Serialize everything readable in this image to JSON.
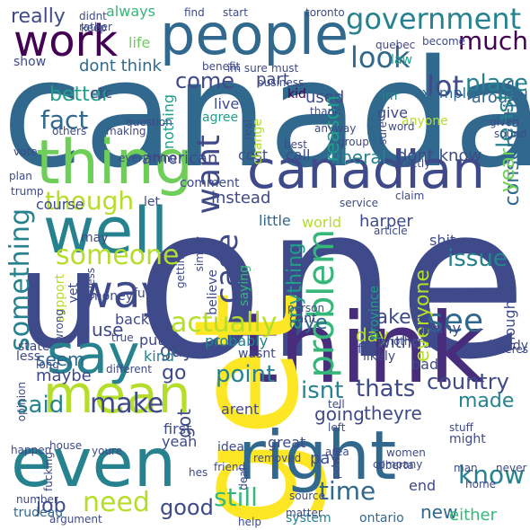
{
  "image_type": "word cloud",
  "background": "#ffffff",
  "palette": [
    "#3e4a89",
    "#31688e",
    "#26828e",
    "#1f9e89",
    "#35b779",
    "#6ece58",
    "#b5de2b",
    "#fde725",
    "#440154"
  ],
  "words": [
    {
      "t": "canada",
      "c": "#31688e"
    },
    {
      "t": "one",
      "c": "#3e4a89"
    },
    {
      "t": "think",
      "c": "#472d7b"
    },
    {
      "t": "get",
      "c": "#fde725"
    },
    {
      "t": "u",
      "c": "#3e4a89"
    },
    {
      "t": "people",
      "c": "#31688e"
    },
    {
      "t": "work",
      "c": "#440154"
    },
    {
      "t": "thing",
      "c": "#6ece58"
    },
    {
      "t": "canadian",
      "c": "#3e4a89"
    },
    {
      "t": "well",
      "c": "#26828e"
    },
    {
      "t": "say",
      "c": "#26828e"
    },
    {
      "t": "even",
      "c": "#26828e"
    },
    {
      "t": "right",
      "c": "#31688e"
    },
    {
      "t": "mean",
      "c": "#b5de2b"
    },
    {
      "t": "way",
      "c": "#3e4a89"
    },
    {
      "t": "government",
      "c": "#26828e"
    },
    {
      "t": "much",
      "c": "#440154"
    },
    {
      "t": "look",
      "c": "#31688e"
    },
    {
      "t": "lot",
      "c": "#3e4a89"
    },
    {
      "t": "place",
      "c": "#26828e"
    },
    {
      "t": "around",
      "c": "#31688e"
    },
    {
      "t": "law",
      "c": "#1f9e89"
    },
    {
      "t": "really",
      "c": "#3e4a89"
    },
    {
      "t": "always",
      "c": "#35b779"
    },
    {
      "t": "come",
      "c": "#3e4a89"
    },
    {
      "t": "part",
      "c": "#3e4a89"
    },
    {
      "t": "used",
      "c": "#3e4a89"
    },
    {
      "t": "fact",
      "c": "#31688e"
    },
    {
      "t": "better",
      "c": "#1f9e89"
    },
    {
      "t": "want",
      "c": "#3e4a89"
    },
    {
      "t": "nothing",
      "c": "#1f9e89"
    },
    {
      "t": "reason",
      "c": "#1f9e89"
    },
    {
      "t": "least",
      "c": "#26828e"
    },
    {
      "t": "conservative",
      "c": "#31688e"
    },
    {
      "t": "example",
      "c": "#31688e"
    },
    {
      "t": "give",
      "c": "#3e4a89"
    },
    {
      "t": "im",
      "c": "#26828e"
    },
    {
      "t": "kid",
      "c": "#440154"
    },
    {
      "t": "live",
      "c": "#3e4a89"
    },
    {
      "t": "agree",
      "c": "#1f9e89"
    },
    {
      "t": "etc",
      "c": "#3e4a89"
    },
    {
      "t": "dont think",
      "c": "#31688e"
    },
    {
      "t": "show",
      "c": "#3e4a89"
    },
    {
      "t": "life",
      "c": "#6ece58"
    },
    {
      "t": "though",
      "c": "#b5de2b"
    },
    {
      "t": "something",
      "c": "#26828e"
    },
    {
      "t": "someone",
      "c": "#b5de2b"
    },
    {
      "t": "case",
      "c": "#3e4a89"
    },
    {
      "t": "problem",
      "c": "#35b779"
    },
    {
      "t": "anything",
      "c": "#1f9e89"
    },
    {
      "t": "liberal",
      "c": "#26828e"
    },
    {
      "t": "call",
      "c": "#3e4a89"
    },
    {
      "t": "cost",
      "c": "#3e4a89"
    },
    {
      "t": "american",
      "c": "#3e4a89"
    },
    {
      "t": "dont know",
      "c": "#3e4a89"
    },
    {
      "t": "year",
      "c": "#6ece58"
    },
    {
      "t": "instead",
      "c": "#3e4a89"
    },
    {
      "t": "little",
      "c": "#31688e"
    },
    {
      "t": "world",
      "c": "#b5de2b"
    },
    {
      "t": "harper",
      "c": "#3e4a89"
    },
    {
      "t": "course",
      "c": "#3e4a89"
    },
    {
      "t": "issue",
      "c": "#26828e"
    },
    {
      "t": "actually",
      "c": "#b5de2b"
    },
    {
      "t": "see",
      "c": "#31688e"
    },
    {
      "t": "ye",
      "c": "#31688e"
    },
    {
      "t": "use",
      "c": "#3e4a89"
    },
    {
      "t": "take",
      "c": "#3e4a89"
    },
    {
      "t": "day",
      "c": "#b5de2b"
    },
    {
      "t": "without",
      "c": "#3e4a89"
    },
    {
      "t": "guy",
      "c": "#3e4a89"
    },
    {
      "t": "seem",
      "c": "#31688e"
    },
    {
      "t": "maybe",
      "c": "#3e4a89"
    },
    {
      "t": "said",
      "c": "#26828e"
    },
    {
      "t": "make",
      "c": "#3e4a89"
    },
    {
      "t": "go",
      "c": "#3e4a89"
    },
    {
      "t": "point",
      "c": "#26828e"
    },
    {
      "t": "isnt",
      "c": "#26828e"
    },
    {
      "t": "thats",
      "c": "#3e4a89"
    },
    {
      "t": "country",
      "c": "#3e4a89"
    },
    {
      "t": "made",
      "c": "#26828e"
    },
    {
      "t": "going",
      "c": "#3e4a89"
    },
    {
      "t": "theyre",
      "c": "#3e4a89"
    },
    {
      "t": "time",
      "c": "#31688e"
    },
    {
      "t": "know",
      "c": "#26828e"
    },
    {
      "t": "still",
      "c": "#35b779"
    },
    {
      "t": "need",
      "c": "#b5de2b"
    },
    {
      "t": "good",
      "c": "#3e4a89"
    },
    {
      "t": "job",
      "c": "#3e4a89"
    },
    {
      "t": "new",
      "c": "#31688e"
    },
    {
      "t": "either",
      "c": "#35b779"
    },
    {
      "t": "got",
      "c": "#3e4a89"
    },
    {
      "t": "probably",
      "c": "#26828e"
    },
    {
      "t": "everyone",
      "c": "#b5de2b"
    },
    {
      "t": "shit",
      "c": "#3e4a89"
    },
    {
      "t": "many",
      "c": "#3e4a89"
    },
    {
      "t": "bad",
      "c": "#3e4a89"
    },
    {
      "t": "thought",
      "c": "#3e4a89"
    },
    {
      "t": "already",
      "c": "#3e4a89"
    },
    {
      "t": "end",
      "c": "#3e4a89"
    },
    {
      "t": "pay",
      "c": "#3e4a89"
    },
    {
      "t": "system",
      "c": "#26828e"
    },
    {
      "t": "ontario",
      "c": "#31688e"
    },
    {
      "t": "trudeau",
      "c": "#31688e"
    },
    {
      "t": "yeah",
      "c": "#3e4a89"
    },
    {
      "t": "great",
      "c": "#3e4a89"
    },
    {
      "t": "idea",
      "c": "#3e4a89"
    },
    {
      "t": "arent",
      "c": "#3e4a89"
    },
    {
      "t": "first",
      "c": "#3e4a89"
    },
    {
      "t": "put",
      "c": "#3e4a89"
    },
    {
      "t": "back",
      "c": "#3e4a89"
    },
    {
      "t": "kind",
      "c": "#26828e"
    },
    {
      "t": "cant",
      "c": "#3e4a89"
    },
    {
      "t": "less",
      "c": "#3e4a89"
    },
    {
      "t": "fuck",
      "c": "#3e4a89"
    },
    {
      "t": "money",
      "c": "#3e4a89"
    },
    {
      "t": "believe",
      "c": "#3e4a89"
    },
    {
      "t": "saying",
      "c": "#35b779"
    },
    {
      "t": "province",
      "c": "#1f9e89"
    },
    {
      "t": "comment",
      "c": "#3e4a89"
    },
    {
      "t": "let",
      "c": "#3e4a89"
    },
    {
      "t": "state",
      "c": "#3e4a89"
    },
    {
      "t": "may",
      "c": "#3e4a89"
    },
    {
      "t": "yet",
      "c": "#3e4a89"
    },
    {
      "t": "support",
      "c": "#b5de2b"
    },
    {
      "t": "change",
      "c": "#b5de2b"
    },
    {
      "t": "anyone",
      "c": "#b5de2b"
    },
    {
      "t": "quebec",
      "c": "#3e4a89"
    },
    {
      "t": "wasnt",
      "c": "#3e4a89"
    },
    {
      "t": "person",
      "c": "#3e4a89"
    },
    {
      "t": "likely",
      "c": "#3e4a89"
    },
    {
      "t": "might",
      "c": "#3e4a89"
    },
    {
      "t": "every",
      "c": "#3e4a89"
    },
    {
      "t": "feel",
      "c": "#3e4a89"
    },
    {
      "t": "others",
      "c": "#3e4a89"
    },
    {
      "t": "toronto",
      "c": "#3e4a89"
    },
    {
      "t": "business",
      "c": "#3e4a89"
    },
    {
      "t": "different",
      "c": "#3e4a89"
    },
    {
      "t": "hes",
      "c": "#3e4a89"
    },
    {
      "t": "number",
      "c": "#3e4a89"
    },
    {
      "t": "happen",
      "c": "#3e4a89"
    },
    {
      "t": "house",
      "c": "#3e4a89"
    },
    {
      "t": "alberta",
      "c": "#3e4a89"
    },
    {
      "t": "help",
      "c": "#3e4a89"
    },
    {
      "t": "argument",
      "c": "#3e4a89"
    },
    {
      "t": "friend",
      "c": "#3e4a89"
    },
    {
      "t": "removed",
      "c": "#3e4a89"
    },
    {
      "t": "source",
      "c": "#3e4a89"
    },
    {
      "t": "matter",
      "c": "#3e4a89"
    },
    {
      "t": "home",
      "c": "#3e4a89"
    },
    {
      "t": "never",
      "c": "#3e4a89"
    },
    {
      "t": "company",
      "c": "#3e4a89"
    },
    {
      "t": "tell",
      "c": "#3e4a89"
    },
    {
      "t": "left",
      "c": "#3e4a89"
    },
    {
      "t": "guess",
      "c": "#3e4a89"
    },
    {
      "t": "youre",
      "c": "#3e4a89"
    },
    {
      "t": "question",
      "c": "#3e4a89"
    },
    {
      "t": "everything",
      "c": "#3e4a89"
    },
    {
      "t": "plan",
      "c": "#3e4a89"
    },
    {
      "t": "vote",
      "c": "#3e4a89"
    },
    {
      "t": "trump",
      "c": "#3e4a89"
    },
    {
      "t": "find",
      "c": "#3e4a89"
    },
    {
      "t": "didnt",
      "c": "#3e4a89"
    },
    {
      "t": "rather",
      "c": "#3e4a89"
    },
    {
      "t": "keep",
      "c": "#3e4a89"
    },
    {
      "t": "start",
      "c": "#3e4a89"
    },
    {
      "t": "benefit",
      "c": "#3e4a89"
    },
    {
      "t": "im sure",
      "c": "#3e4a89"
    },
    {
      "t": "must",
      "c": "#3e4a89"
    },
    {
      "t": "become",
      "c": "#3e4a89"
    },
    {
      "t": "thank",
      "c": "#3e4a89"
    },
    {
      "t": "anyway",
      "c": "#3e4a89"
    },
    {
      "t": "real",
      "c": "#3e4a89"
    },
    {
      "t": "best",
      "c": "#3e4a89"
    },
    {
      "t": "exactly",
      "c": "#3e4a89"
    },
    {
      "t": "group",
      "c": "#3e4a89"
    },
    {
      "t": "word",
      "c": "#3e4a89"
    },
    {
      "t": "given",
      "c": "#3e4a89"
    },
    {
      "t": "sound",
      "c": "#3e4a89"
    },
    {
      "t": "sure",
      "c": "#3e4a89"
    },
    {
      "t": "claim",
      "c": "#3e4a89"
    },
    {
      "t": "service",
      "c": "#3e4a89"
    },
    {
      "t": "article",
      "c": "#3e4a89"
    },
    {
      "t": "another",
      "c": "#3e4a89"
    },
    {
      "t": "theres",
      "c": "#3e4a89"
    },
    {
      "t": "true",
      "c": "#3e4a89"
    },
    {
      "t": "simply",
      "c": "#3e4a89"
    },
    {
      "t": "getting",
      "c": "#3e4a89"
    },
    {
      "t": "wrong",
      "c": "#3e4a89"
    },
    {
      "t": "long",
      "c": "#3e4a89"
    },
    {
      "t": "opinion",
      "c": "#3e4a89"
    },
    {
      "t": "deal",
      "c": "#3e4a89"
    },
    {
      "t": "making",
      "c": "#3e4a89"
    },
    {
      "t": "fucking",
      "c": "#3e4a89"
    },
    {
      "t": "power",
      "c": "#3e4a89"
    },
    {
      "t": "area",
      "c": "#3e4a89"
    },
    {
      "t": "stuff",
      "c": "#3e4a89"
    },
    {
      "t": "women",
      "c": "#3e4a89"
    },
    {
      "t": "man",
      "c": "#3e4a89"
    },
    {
      "t": "car",
      "c": "#3e4a89"
    },
    {
      "t": "fer",
      "c": "#3e4a89"
    },
    {
      "t": "mr",
      "c": "#3e4a89"
    }
  ]
}
